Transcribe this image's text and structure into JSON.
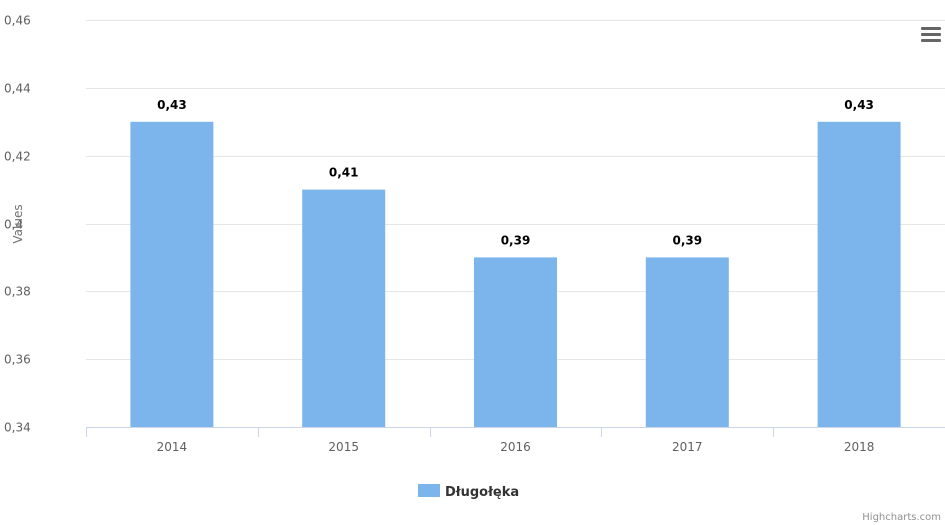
{
  "chart_data": {
    "type": "bar",
    "categories": [
      "2014",
      "2015",
      "2016",
      "2017",
      "2018"
    ],
    "series": [
      {
        "name": "Długołęka",
        "values": [
          0.43,
          0.41,
          0.39,
          0.39,
          0.43
        ]
      }
    ],
    "data_labels": [
      "0,43",
      "0,41",
      "0,39",
      "0,39",
      "0,43"
    ],
    "y_ticks": [
      0.34,
      0.36,
      0.38,
      0.4,
      0.42,
      0.44,
      0.46
    ],
    "y_tick_labels": [
      "0,34",
      "0,36",
      "0,38",
      "0,4",
      "0,42",
      "0,44",
      "0,46"
    ],
    "ylim": [
      0.34,
      0.46
    ],
    "ylabel": "Values",
    "xlabel": "",
    "title": "",
    "grid": true,
    "legend_position": "bottom-center",
    "bar_color": "#7cb5ec"
  },
  "credits": "Highcharts.com",
  "icons": {
    "menu": "hamburger-menu-icon"
  }
}
